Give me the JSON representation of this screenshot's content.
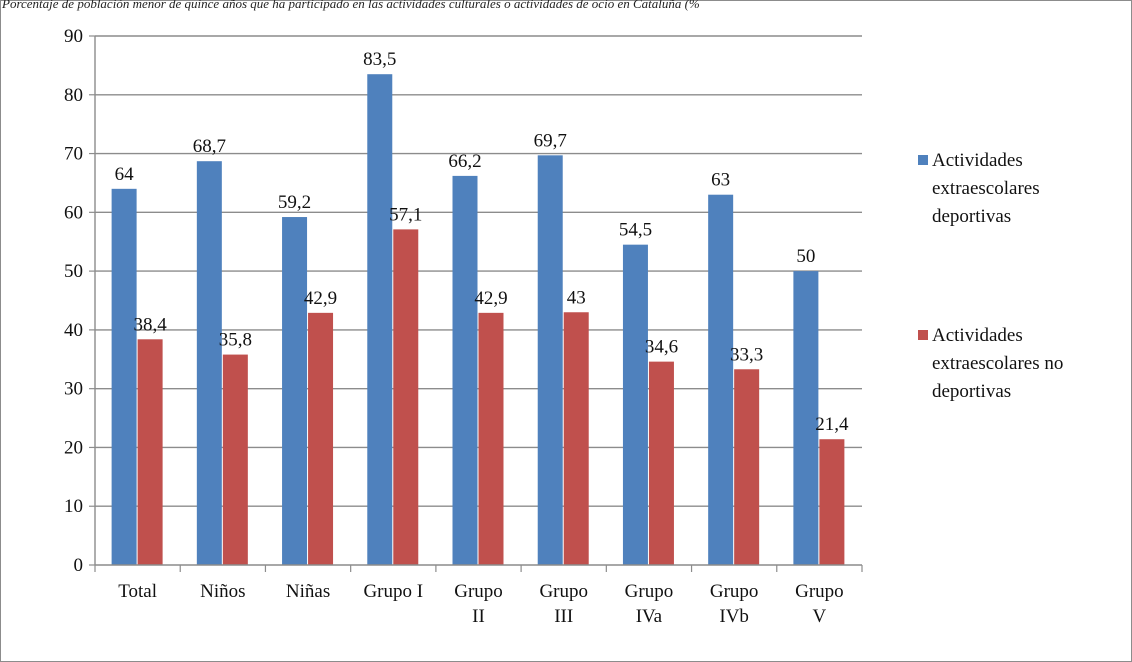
{
  "caption": "Porcentaje de población menor de quince años que ha participado en las actividades culturales o actividades de ocio en Cataluña (%",
  "chart_data": {
    "type": "bar",
    "title": "",
    "xlabel": "",
    "ylabel": "",
    "ylim": [
      0,
      90
    ],
    "yticks": [
      0,
      10,
      20,
      30,
      40,
      50,
      60,
      70,
      80,
      90
    ],
    "grid": true,
    "legend_position": "right",
    "categories": [
      [
        "Total"
      ],
      [
        "Niños"
      ],
      [
        "Niñas"
      ],
      [
        "Grupo I"
      ],
      [
        "Grupo",
        "II"
      ],
      [
        "Grupo",
        "III"
      ],
      [
        "Grupo",
        "IVa"
      ],
      [
        "Grupo",
        "IVb"
      ],
      [
        "Grupo",
        "V"
      ]
    ],
    "series": [
      {
        "name": [
          "Actividades",
          "extraescolares",
          "deportivas"
        ],
        "color": "#4f81bd",
        "values": [
          64,
          68.7,
          59.2,
          83.5,
          66.2,
          69.7,
          54.5,
          63,
          50
        ],
        "labels": [
          "64",
          "68,7",
          "59,2",
          "83,5",
          "66,2",
          "69,7",
          "54,5",
          "63",
          "50"
        ]
      },
      {
        "name": [
          "Actividades",
          "extraescolares no",
          "deportivas"
        ],
        "color": "#c0504d",
        "values": [
          38.4,
          35.8,
          42.9,
          57.1,
          42.9,
          43,
          34.6,
          33.3,
          21.4
        ],
        "labels": [
          "38,4",
          "35,8",
          "42,9",
          "57,1",
          "42,9",
          "43",
          "34,6",
          "33,3",
          "21,4"
        ]
      }
    ]
  }
}
